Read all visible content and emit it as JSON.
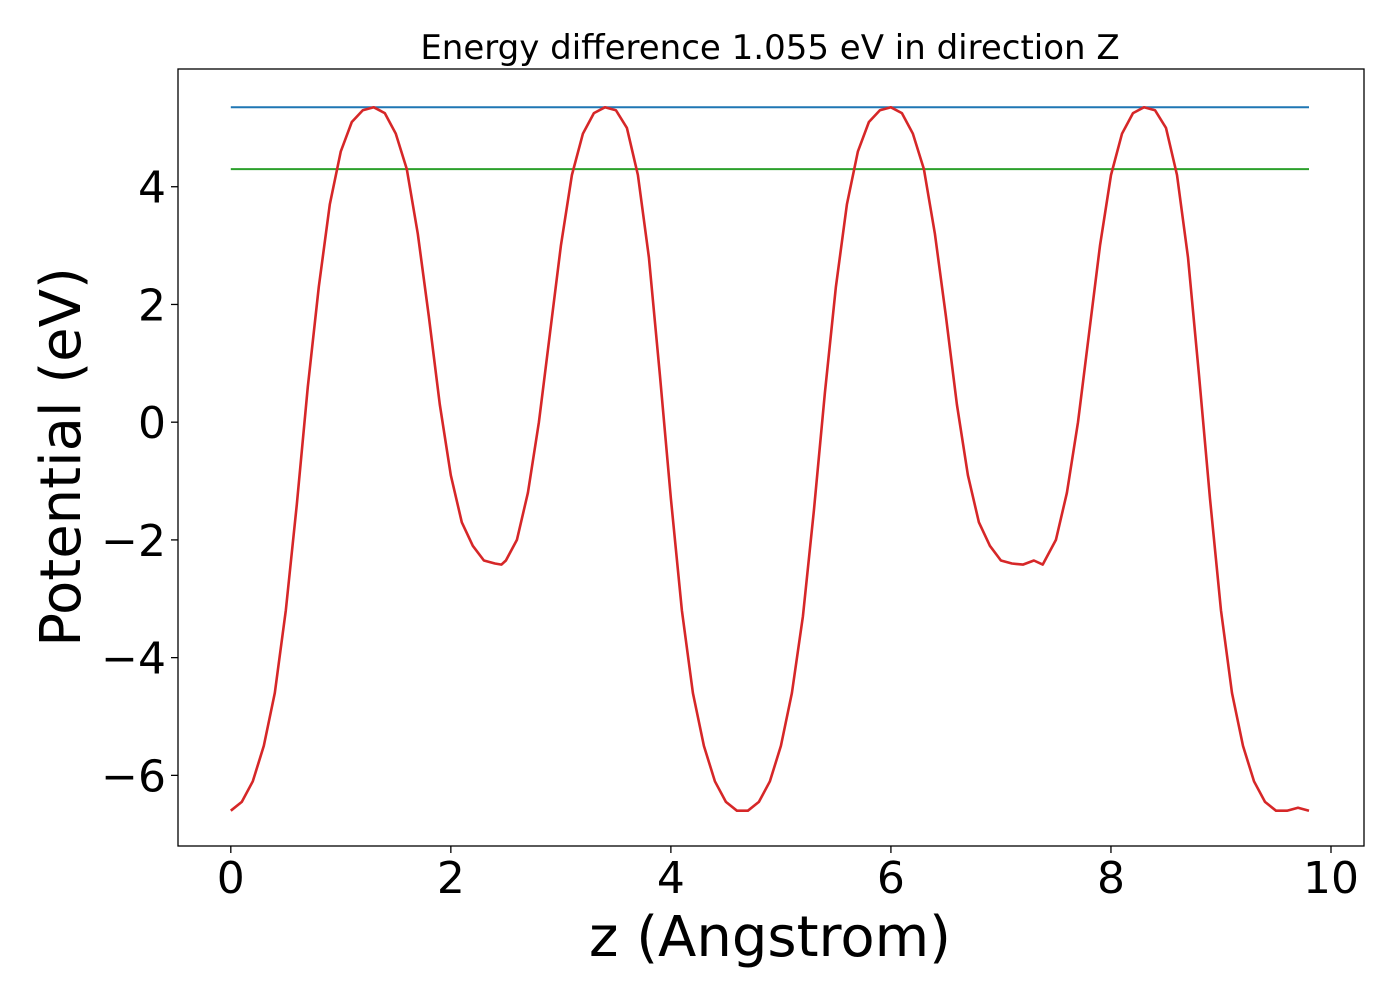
{
  "chart_data": {
    "type": "line",
    "title": "Energy difference 1.055 eV in direction Z",
    "xlabel": "z (Angstrom)",
    "ylabel": "Potential (eV)",
    "xlim": [
      -0.48,
      10.3
    ],
    "ylim": [
      -7.2,
      6.0
    ],
    "xticks": [
      0,
      2,
      4,
      6,
      8,
      10
    ],
    "yticks": [
      -6,
      -4,
      -2,
      0,
      2,
      4
    ],
    "grid": false,
    "legend": "none",
    "series": [
      {
        "color": "#d62728",
        "x": [
          0.0,
          0.1,
          0.2,
          0.3,
          0.4,
          0.5,
          0.6,
          0.7,
          0.8,
          0.9,
          1.0,
          1.1,
          1.2,
          1.3,
          1.4,
          1.5,
          1.6,
          1.7,
          1.8,
          1.9,
          2.0,
          2.1,
          2.2,
          2.3,
          2.4,
          2.46,
          2.5,
          2.6,
          2.7,
          2.8,
          2.9,
          3.0,
          3.1,
          3.2,
          3.3,
          3.4,
          3.5,
          3.6,
          3.7,
          3.8,
          3.9,
          4.0,
          4.1,
          4.2,
          4.3,
          4.4,
          4.5,
          4.6,
          4.7,
          4.8,
          4.9,
          5.0,
          5.1,
          5.2,
          5.3,
          5.4,
          5.5,
          5.6,
          5.7,
          5.8,
          5.9,
          6.0,
          6.1,
          6.2,
          6.3,
          6.4,
          6.5,
          6.6,
          6.7,
          6.8,
          6.9,
          7.0,
          7.1,
          7.2,
          7.3,
          7.38,
          7.5,
          7.6,
          7.7,
          7.8,
          7.9,
          8.0,
          8.1,
          8.2,
          8.3,
          8.4,
          8.5,
          8.6,
          8.7,
          8.8,
          8.9,
          9.0,
          9.1,
          9.2,
          9.3,
          9.4,
          9.5,
          9.6,
          9.7,
          9.8
        ],
        "y": [
          -6.6,
          -6.45,
          -6.1,
          -5.5,
          -4.6,
          -3.2,
          -1.4,
          0.6,
          2.3,
          3.7,
          4.6,
          5.1,
          5.3,
          5.35,
          5.25,
          4.9,
          4.3,
          3.2,
          1.8,
          0.3,
          -0.9,
          -1.7,
          -2.1,
          -2.35,
          -2.4,
          -2.42,
          -2.35,
          -2.0,
          -1.2,
          0.0,
          1.5,
          3.0,
          4.2,
          4.9,
          5.25,
          5.35,
          5.3,
          5.0,
          4.2,
          2.8,
          0.8,
          -1.3,
          -3.2,
          -4.6,
          -5.5,
          -6.1,
          -6.45,
          -6.6,
          -6.6,
          -6.45,
          -6.1,
          -5.5,
          -4.6,
          -3.3,
          -1.5,
          0.5,
          2.3,
          3.7,
          4.6,
          5.1,
          5.3,
          5.35,
          5.25,
          4.9,
          4.3,
          3.2,
          1.8,
          0.3,
          -0.9,
          -1.7,
          -2.1,
          -2.35,
          -2.4,
          -2.42,
          -2.35,
          -2.42,
          -2.0,
          -1.2,
          0.0,
          1.5,
          3.0,
          4.2,
          4.9,
          5.25,
          5.35,
          5.3,
          5.0,
          4.2,
          2.8,
          0.8,
          -1.3,
          -3.2,
          -4.6,
          -5.5,
          -6.1,
          -6.45,
          -6.6,
          -6.6,
          -6.55,
          -6.6
        ]
      },
      {
        "color": "#1f77b4",
        "x": [
          0.0,
          9.8
        ],
        "y": [
          5.35,
          5.35
        ]
      },
      {
        "color": "#2ca02c",
        "x": [
          0.0,
          9.8
        ],
        "y": [
          4.3,
          4.3
        ]
      }
    ]
  }
}
